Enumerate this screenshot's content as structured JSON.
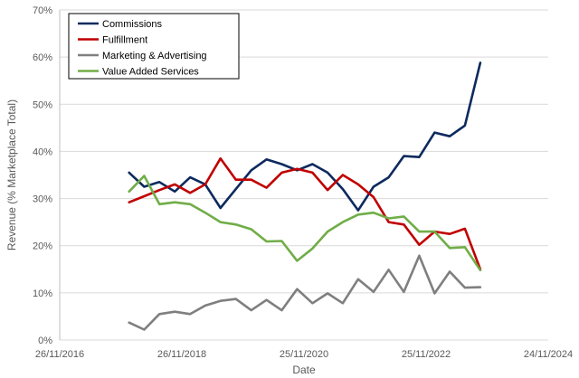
{
  "chart_data": {
    "type": "line",
    "xlabel": "Date",
    "ylabel": "Revenue (% Marketplace Total)",
    "xlim": [
      "2016-11-26",
      "2024-11-24"
    ],
    "x_ticks": [
      "26/11/2016",
      "26/11/2018",
      "25/11/2020",
      "25/11/2022",
      "24/11/2024"
    ],
    "ylim": [
      0,
      70
    ],
    "y_ticks": [
      "0%",
      "10%",
      "20%",
      "30%",
      "40%",
      "50%",
      "60%",
      "70%"
    ],
    "grid": "horizontal",
    "legend_position": "top-left",
    "x": [
      "2018-01",
      "2018-04",
      "2018-07",
      "2018-10",
      "2019-01",
      "2019-04",
      "2019-07",
      "2019-10",
      "2020-01",
      "2020-04",
      "2020-07",
      "2020-10",
      "2021-01",
      "2021-04",
      "2021-07",
      "2021-10",
      "2022-01",
      "2022-04",
      "2022-07",
      "2022-10",
      "2023-01",
      "2023-04",
      "2023-07",
      "2023-10",
      "2024-01"
    ],
    "series": [
      {
        "name": "Commissions",
        "color": "#0d2a5e",
        "values": [
          35.5,
          32.5,
          33.5,
          31.5,
          34.5,
          33.0,
          28.0,
          32.0,
          36.0,
          38.3,
          37.3,
          36.0,
          37.3,
          35.5,
          32.0,
          27.5,
          32.5,
          34.5,
          39.0,
          38.8,
          44.0,
          43.2,
          45.5,
          58.8,
          null
        ]
      },
      {
        "name": "Fulfillment",
        "color": "#c00000",
        "values": [
          29.2,
          30.5,
          31.8,
          33.0,
          31.2,
          33.0,
          38.5,
          34.0,
          34.0,
          32.3,
          35.5,
          36.3,
          35.5,
          31.8,
          35.0,
          33.0,
          30.3,
          25.0,
          24.5,
          20.2,
          23.0,
          22.5,
          23.6,
          15.0,
          null
        ]
      },
      {
        "name": "Marketing & Advertising",
        "color": "#7f7f7f",
        "values": [
          3.7,
          2.2,
          5.5,
          6.0,
          5.5,
          7.3,
          8.3,
          8.7,
          6.3,
          8.5,
          6.3,
          10.8,
          7.8,
          9.9,
          7.8,
          12.9,
          10.2,
          14.9,
          10.2,
          17.9,
          9.9,
          14.5,
          11.1,
          11.2,
          null
        ]
      },
      {
        "name": "Value Added Services",
        "color": "#70ad47",
        "values": [
          31.5,
          34.8,
          28.8,
          29.2,
          28.8,
          27.0,
          25.0,
          24.5,
          23.5,
          20.9,
          21.0,
          16.8,
          19.4,
          23.0,
          25.0,
          26.6,
          27.0,
          25.8,
          26.2,
          23.0,
          23.0,
          19.5,
          19.7,
          14.8,
          null
        ]
      }
    ]
  }
}
